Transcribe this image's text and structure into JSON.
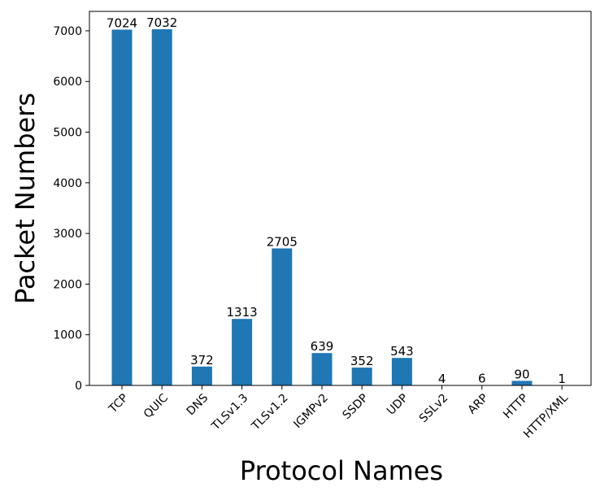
{
  "chart_data": {
    "type": "bar",
    "title": "",
    "xlabel": "Protocol Names",
    "ylabel": "Packet Numbers",
    "categories": [
      "TCP",
      "QUIC",
      "DNS",
      "TLSv1.3",
      "TLSv1.2",
      "IGMPv2",
      "SSDP",
      "UDP",
      "SSLv2",
      "ARP",
      "HTTP",
      "HTTP/XML"
    ],
    "values": [
      7024,
      7032,
      372,
      1313,
      2705,
      639,
      352,
      543,
      4,
      6,
      90,
      1
    ],
    "data_labels": [
      "7024",
      "7032",
      "372",
      "1313",
      "2705",
      "639",
      "352",
      "543",
      "4",
      "6",
      "90",
      "1"
    ],
    "yticks": [
      0,
      1000,
      2000,
      3000,
      4000,
      5000,
      6000,
      7000
    ],
    "ytick_labels": [
      "0",
      "1000",
      "2000",
      "3000",
      "4000",
      "5000",
      "6000",
      "7000"
    ],
    "ylim": [
      0,
      7384
    ],
    "grid": false,
    "legend": "none",
    "bar_color": "#1f77b4"
  }
}
